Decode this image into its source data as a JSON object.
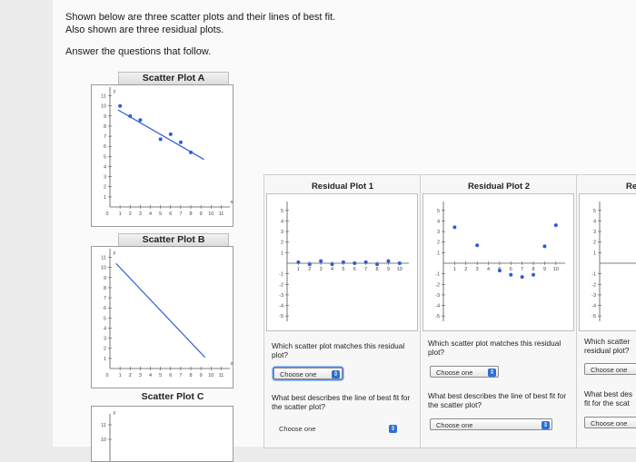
{
  "intro": {
    "line1": "Shown below are three scatter plots and their lines of best fit.",
    "line2": "Also shown are three residual plots.",
    "line3": "Answer the questions that follow."
  },
  "scatter_titles": {
    "a": "Scatter Plot A",
    "b": "Scatter Plot B",
    "c": "Scatter Plot C"
  },
  "residual_titles": {
    "r1": "Residual Plot 1",
    "r2": "Residual Plot 2",
    "r3": "Re"
  },
  "questions": {
    "r1_q1": "Which scatter plot matches this residual plot?",
    "r1_q2": "What best describes the line of best fit for the scatter plot?",
    "r2_q1": "Which scatter plot matches this residual plot?",
    "r2_q2": "What best describes the line of best fit for the scatter plot?",
    "r3_q1": "Which scatter residual plot?",
    "r3_q2": "What best des fit for the scat"
  },
  "select_label": "Choose one",
  "colors": {
    "point": "#2f5bd6",
    "line": "#2f5bd6",
    "axis": "#555555",
    "select_arrow": "#2b6fd6"
  },
  "chart_data": [
    {
      "type": "scatter",
      "title": "Scatter Plot A",
      "x_ticks": [
        "0",
        "1",
        "2",
        "3",
        "4",
        "5",
        "6",
        "7",
        "8",
        "9",
        "10",
        "11"
      ],
      "y_ticks": [
        "1",
        "2",
        "3",
        "4",
        "5",
        "6",
        "7",
        "8",
        "9",
        "10",
        "11"
      ],
      "xlabel": "x",
      "ylabel": "y",
      "xlim": [
        0,
        11.5
      ],
      "ylim": [
        0,
        11.5
      ],
      "points": [
        [
          1,
          10
        ],
        [
          2,
          9
        ],
        [
          3,
          8.6
        ],
        [
          5,
          6.7
        ],
        [
          6,
          7.2
        ],
        [
          7,
          6.4
        ],
        [
          8,
          5.4
        ]
      ],
      "fit_line": [
        [
          0.8,
          9.6
        ],
        [
          9.3,
          4.7
        ]
      ]
    },
    {
      "type": "scatter",
      "title": "Scatter Plot B",
      "x_ticks": [
        "0",
        "1",
        "2",
        "3",
        "4",
        "5",
        "6",
        "7",
        "8",
        "9",
        "10",
        "11"
      ],
      "y_ticks": [
        "1",
        "2",
        "3",
        "4",
        "5",
        "6",
        "7",
        "8",
        "9",
        "10",
        "11"
      ],
      "xlabel": "x",
      "ylabel": "y",
      "xlim": [
        0,
        11.5
      ],
      "ylim": [
        0,
        11.5
      ],
      "points": [],
      "fit_line": [
        [
          0.6,
          10.4
        ],
        [
          9.4,
          1.1
        ]
      ]
    },
    {
      "type": "scatter",
      "title": "Scatter Plot C",
      "y_ticks": [
        "10",
        "11"
      ],
      "xlabel": "x",
      "ylabel": "y",
      "xlim": [
        0,
        11.5
      ],
      "ylim": [
        8.5,
        11.5
      ],
      "points": [],
      "fit_line": []
    },
    {
      "type": "scatter",
      "title": "Residual Plot 1",
      "x_ticks": [
        "1",
        "2",
        "3",
        "4",
        "5",
        "6",
        "7",
        "8",
        "9",
        "10"
      ],
      "y_ticks": [
        "-5",
        "-4",
        "-3",
        "-2",
        "-1",
        "1",
        "2",
        "3",
        "4",
        "5"
      ],
      "xlim": [
        0,
        10.5
      ],
      "ylim": [
        -5.5,
        5.5
      ],
      "points": [
        [
          1,
          0.1
        ],
        [
          2,
          -0.1
        ],
        [
          3,
          0.2
        ],
        [
          4,
          -0.1
        ],
        [
          5,
          0.1
        ],
        [
          6,
          0
        ],
        [
          7,
          0.1
        ],
        [
          8,
          -0.1
        ],
        [
          9,
          0.2
        ],
        [
          10,
          0
        ]
      ]
    },
    {
      "type": "scatter",
      "title": "Residual Plot 2",
      "x_ticks": [
        "1",
        "2",
        "3",
        "4",
        "5",
        "6",
        "7",
        "8",
        "9",
        "10"
      ],
      "y_ticks": [
        "-5",
        "-4",
        "-3",
        "-2",
        "-1",
        "1",
        "2",
        "3",
        "4",
        "5"
      ],
      "xlim": [
        0,
        10.5
      ],
      "ylim": [
        -5.5,
        5.5
      ],
      "points": [
        [
          1,
          3.4
        ],
        [
          3,
          1.7
        ],
        [
          5,
          -0.7
        ],
        [
          6,
          -1.1
        ],
        [
          7,
          -1.3
        ],
        [
          8,
          -1.1
        ],
        [
          9,
          1.6
        ],
        [
          10,
          3.6
        ]
      ]
    }
  ]
}
